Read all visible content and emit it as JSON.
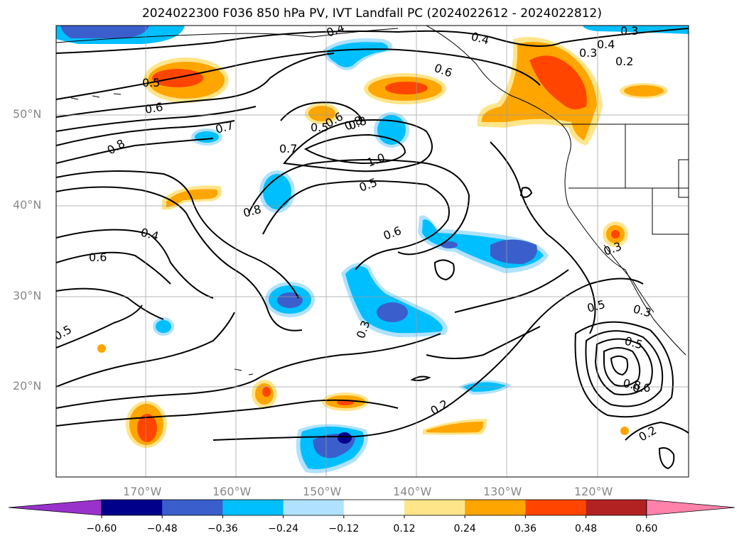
{
  "title": "2024022300 F036 850 hPa PV, IVT Landfall PC (2024022612 - 2024022812)",
  "map": {
    "lat_labels": [
      "50°N",
      "40°N",
      "30°N",
      "20°N"
    ],
    "lon_labels": [
      "170°W",
      "160°W",
      "150°W",
      "140°W",
      "130°W",
      "120°W"
    ],
    "contour_labels": [
      "0.4",
      "0.4",
      "0.3",
      "0.2",
      "0.5",
      "0.6",
      "0.4",
      "0.3",
      "0.8",
      "0.6",
      "0.7",
      "0.5",
      "0.6",
      "0.8",
      "0.7",
      "1.0",
      "0.8",
      "0.5",
      "0.8",
      "0.4",
      "0.6",
      "0.6",
      "0.3",
      "0.5",
      "0.3",
      "0.3",
      "0.5",
      "0.5",
      "0.8",
      "0.6",
      "0.2",
      "0.2"
    ]
  },
  "colorbar": {
    "ticks": [
      "−0.60",
      "−0.48",
      "−0.36",
      "−0.24",
      "−0.12",
      "0.12",
      "0.24",
      "0.36",
      "0.48",
      "0.60"
    ],
    "colors": [
      "#9932cc",
      "#00008b",
      "#3a5fcd",
      "#00bfff",
      "#b0e2ff",
      "#ffffff",
      "#ffe58a",
      "#ffa500",
      "#ff4500",
      "#b22222",
      "#ff82ab"
    ]
  }
}
